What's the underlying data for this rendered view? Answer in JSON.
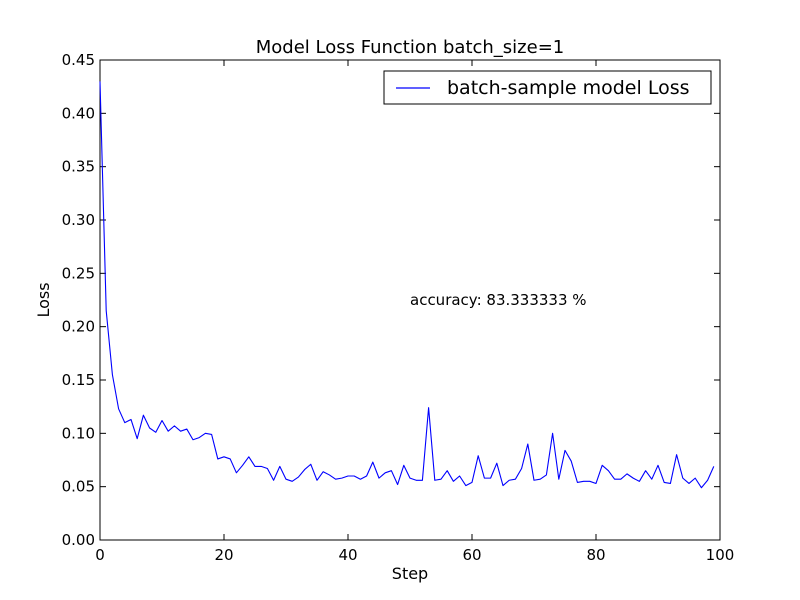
{
  "chart_data": {
    "type": "line",
    "title": "Model Loss Function batch_size=1",
    "xlabel": "Step",
    "ylabel": "Loss",
    "xlim": [
      0,
      100
    ],
    "ylim": [
      0,
      0.45
    ],
    "xticks": [
      0,
      20,
      40,
      60,
      80,
      100
    ],
    "xtick_labels": [
      "0",
      "20",
      "40",
      "60",
      "80",
      "100"
    ],
    "yticks": [
      0,
      0.05,
      0.1,
      0.15,
      0.2,
      0.25,
      0.3,
      0.35,
      0.4,
      0.45
    ],
    "ytick_labels": [
      "0.00",
      "0.05",
      "0.10",
      "0.15",
      "0.20",
      "0.25",
      "0.30",
      "0.35",
      "0.40",
      "0.45"
    ],
    "grid": false,
    "legend_position": "top-right",
    "annotation": {
      "text": "accuracy: 83.333333 %",
      "x": 50,
      "y": 0.225
    },
    "series": [
      {
        "name": "batch-sample model Loss",
        "color": "#0000ff",
        "x": [
          0,
          1,
          2,
          3,
          4,
          5,
          6,
          7,
          8,
          9,
          10,
          11,
          12,
          13,
          14,
          15,
          16,
          17,
          18,
          19,
          20,
          21,
          22,
          23,
          24,
          25,
          26,
          27,
          28,
          29,
          30,
          31,
          32,
          33,
          34,
          35,
          36,
          37,
          38,
          39,
          40,
          41,
          42,
          43,
          44,
          45,
          46,
          47,
          48,
          49,
          50,
          51,
          52,
          53,
          54,
          55,
          56,
          57,
          58,
          59,
          60,
          61,
          62,
          63,
          64,
          65,
          66,
          67,
          68,
          69,
          70,
          71,
          72,
          73,
          74,
          75,
          76,
          77,
          78,
          79,
          80,
          81,
          82,
          83,
          84,
          85,
          86,
          87,
          88,
          89,
          90,
          91,
          92,
          93,
          94,
          95,
          96,
          97,
          98,
          99
        ],
        "values": [
          0.43,
          0.215,
          0.155,
          0.123,
          0.11,
          0.113,
          0.095,
          0.117,
          0.105,
          0.101,
          0.112,
          0.102,
          0.107,
          0.102,
          0.104,
          0.094,
          0.096,
          0.1,
          0.099,
          0.076,
          0.078,
          0.076,
          0.063,
          0.07,
          0.078,
          0.069,
          0.069,
          0.067,
          0.056,
          0.069,
          0.057,
          0.055,
          0.059,
          0.066,
          0.071,
          0.056,
          0.064,
          0.061,
          0.057,
          0.058,
          0.06,
          0.06,
          0.057,
          0.06,
          0.073,
          0.058,
          0.063,
          0.065,
          0.052,
          0.07,
          0.058,
          0.056,
          0.056,
          0.124,
          0.056,
          0.057,
          0.065,
          0.055,
          0.06,
          0.051,
          0.054,
          0.079,
          0.058,
          0.058,
          0.072,
          0.051,
          0.056,
          0.057,
          0.067,
          0.09,
          0.056,
          0.057,
          0.061,
          0.1,
          0.057,
          0.084,
          0.074,
          0.054,
          0.055,
          0.055,
          0.053,
          0.07,
          0.065,
          0.057,
          0.057,
          0.062,
          0.058,
          0.055,
          0.065,
          0.057,
          0.07,
          0.054,
          0.053,
          0.08,
          0.058,
          0.053,
          0.058,
          0.049,
          0.056,
          0.069
        ]
      }
    ]
  }
}
